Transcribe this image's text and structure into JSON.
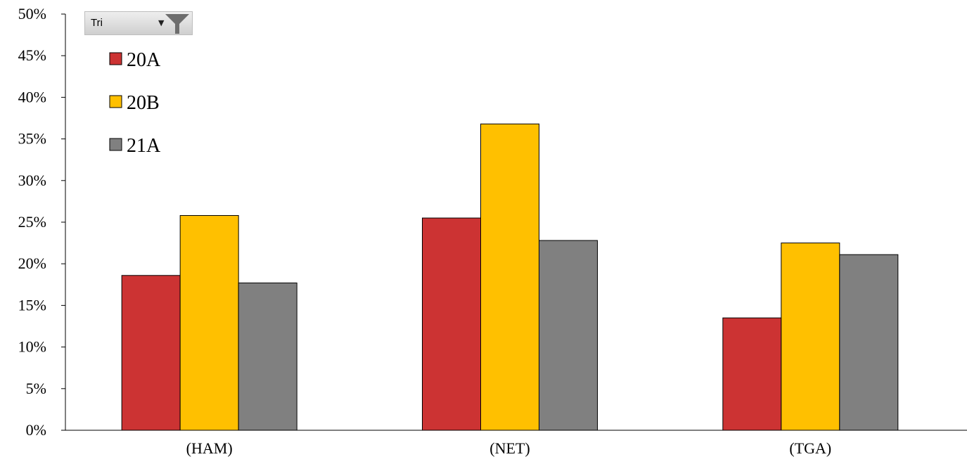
{
  "filter": {
    "label": "Tri",
    "icon": "filter-funnel-icon"
  },
  "chart_data": {
    "type": "bar",
    "categories": [
      "(HAM)",
      "(NET)",
      "(TGA)"
    ],
    "series": [
      {
        "name": "20A",
        "color": "#cc3333",
        "values": [
          18.6,
          25.5,
          13.5
        ]
      },
      {
        "name": "20B",
        "color": "#ffc000",
        "values": [
          25.8,
          36.8,
          22.5
        ]
      },
      {
        "name": "21A",
        "color": "#808080",
        "values": [
          17.7,
          22.8,
          21.1
        ]
      }
    ],
    "y_ticks": [
      "0%",
      "5%",
      "10%",
      "15%",
      "20%",
      "25%",
      "30%",
      "35%",
      "40%",
      "45%",
      "50%"
    ],
    "ylim": [
      0,
      50
    ],
    "y_unit": "%",
    "grid": false,
    "legend_position": "top-left",
    "title": "",
    "xlabel": "",
    "ylabel": ""
  }
}
